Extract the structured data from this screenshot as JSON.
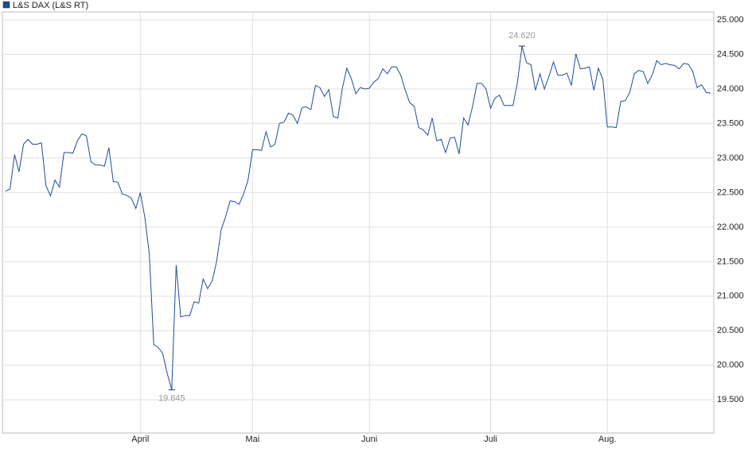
{
  "chart_data": {
    "type": "line",
    "series": [
      {
        "name": "L&S DAX (L&S RT)",
        "color": "#1c4d9c",
        "values": [
          22520,
          22550,
          23050,
          22800,
          23200,
          23270,
          23200,
          23200,
          23220,
          22600,
          22450,
          22680,
          22580,
          23080,
          23080,
          23070,
          23250,
          23350,
          23320,
          22950,
          22900,
          22900,
          22880,
          23150,
          22660,
          22650,
          22480,
          22460,
          22420,
          22270,
          22500,
          22150,
          21620,
          20300,
          20260,
          20170,
          19880,
          19645,
          21450,
          20700,
          20720,
          20720,
          20920,
          20900,
          21250,
          21110,
          21220,
          21500,
          21960,
          22150,
          22380,
          22370,
          22330,
          22480,
          22680,
          23120,
          23120,
          23110,
          23380,
          23160,
          23200,
          23500,
          23520,
          23650,
          23620,
          23500,
          23730,
          23740,
          23700,
          24050,
          24020,
          23890,
          23990,
          23600,
          23580,
          24010,
          24300,
          24150,
          23930,
          24020,
          24000,
          24010,
          24100,
          24150,
          24290,
          24220,
          24320,
          24320,
          24200,
          23980,
          23800,
          23750,
          23440,
          23410,
          23330,
          23580,
          23250,
          23270,
          23080,
          23290,
          23300,
          23060,
          23580,
          23480,
          23750,
          24080,
          24080,
          24000,
          23720,
          23870,
          23910,
          23760,
          23760,
          23760,
          24100,
          24620,
          24380,
          24350,
          23980,
          24220,
          24000,
          24180,
          24390,
          24200,
          24200,
          24230,
          24050,
          24510,
          24290,
          24300,
          24320,
          23980,
          24300,
          24140,
          23450,
          23450,
          23440,
          23820,
          23830,
          23950,
          24220,
          24270,
          24250,
          24080,
          24200,
          24410,
          24350,
          24370,
          24350,
          24340,
          24290,
          24370,
          24360,
          24260,
          24020,
          24060,
          23950,
          23940
        ]
      }
    ],
    "categories": [
      null,
      null,
      null,
      null,
      null,
      null,
      null,
      null,
      null,
      null,
      null,
      null,
      null,
      null,
      null,
      null,
      null,
      null,
      null,
      null,
      null,
      null,
      null,
      null,
      null,
      null,
      null,
      null,
      null,
      null,
      "April",
      null,
      null,
      null,
      null,
      null,
      null,
      null,
      null,
      null,
      null,
      null,
      null,
      null,
      null,
      null,
      null,
      null,
      null,
      null,
      null,
      null,
      null,
      null,
      null,
      "Mai",
      null,
      null,
      null,
      null,
      null,
      null,
      null,
      null,
      null,
      null,
      null,
      null,
      null,
      null,
      null,
      null,
      null,
      null,
      null,
      null,
      null,
      null,
      null,
      null,
      null,
      "Juni",
      null,
      null,
      null,
      null,
      null,
      null,
      null,
      null,
      null,
      null,
      null,
      null,
      null,
      null,
      null,
      null,
      null,
      null,
      null,
      null,
      null,
      null,
      null,
      null,
      null,
      null,
      "Juli",
      null,
      null,
      null,
      null,
      null,
      null,
      null,
      null,
      null,
      null,
      null,
      null,
      null,
      null,
      null,
      null,
      null,
      null,
      null,
      null,
      null,
      null,
      null,
      null,
      null,
      "Aug.",
      null,
      null,
      null,
      null,
      null,
      null,
      null,
      null,
      null,
      null,
      null,
      null,
      null,
      null,
      null,
      null,
      null,
      null,
      null,
      null,
      null,
      null,
      null
    ],
    "ylim": [
      19020,
      25115
    ],
    "yticks": [
      {
        "value": 19500,
        "label": "19.500"
      },
      {
        "value": 20000,
        "label": "20.000"
      },
      {
        "value": 20500,
        "label": "20.500"
      },
      {
        "value": 21000,
        "label": "21.000"
      },
      {
        "value": 21500,
        "label": "21.500"
      },
      {
        "value": 22000,
        "label": "22.000"
      },
      {
        "value": 22500,
        "label": "22.500"
      },
      {
        "value": 23000,
        "label": "23.000"
      },
      {
        "value": 23500,
        "label": "23.500"
      },
      {
        "value": 24000,
        "label": "24.000"
      },
      {
        "value": 24500,
        "label": "24.500"
      },
      {
        "value": 25000,
        "label": "25.000"
      }
    ],
    "grid": true,
    "annotations": [
      {
        "at": "max",
        "text": "24.620"
      },
      {
        "at": "min",
        "text": "19.645"
      }
    ]
  }
}
